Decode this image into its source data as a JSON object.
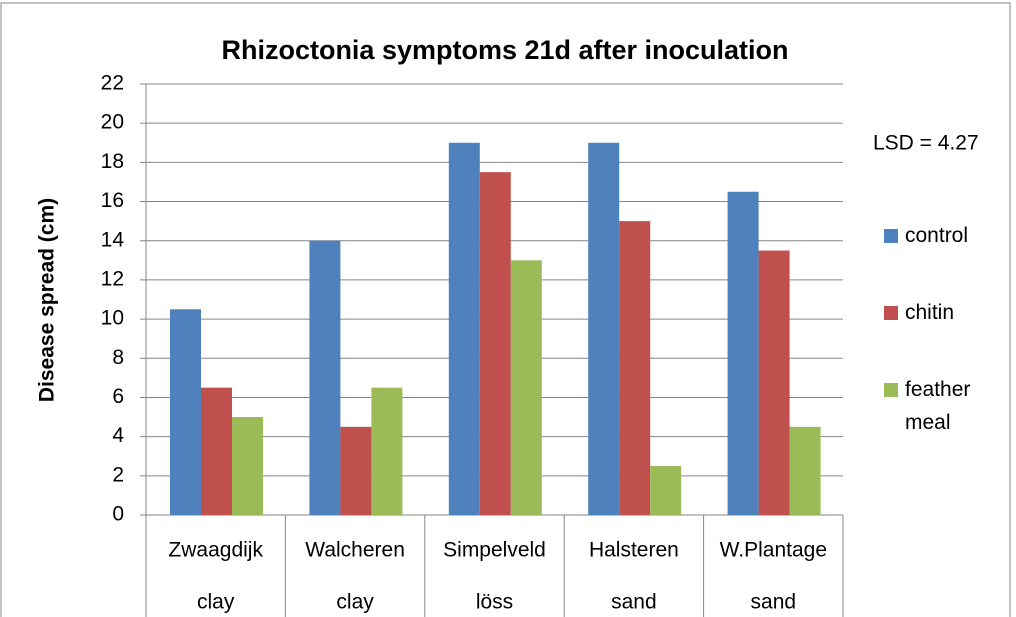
{
  "chart_data": {
    "type": "bar",
    "title": "Rhizoctonia symptoms 21d after inoculation",
    "y_label": "Disease spread (cm)",
    "annotation": "LSD = 4.27",
    "categories": [
      [
        "Zwaagdijk",
        "clay"
      ],
      [
        "Walcheren",
        "clay"
      ],
      [
        "Simpelveld",
        "löss"
      ],
      [
        "Halsteren",
        "sand"
      ],
      [
        "W.Plantage",
        "sand"
      ]
    ],
    "series": [
      {
        "name": "control",
        "color": "#4f81bd",
        "values": [
          10.5,
          14,
          19,
          19,
          16.5
        ]
      },
      {
        "name": "chitin",
        "color": "#c0504d",
        "values": [
          6.5,
          4.5,
          17.5,
          15,
          13.5
        ]
      },
      {
        "name": "feather meal",
        "color": "#9bbb59",
        "values": [
          5,
          6.5,
          13,
          2.5,
          4.5
        ]
      }
    ],
    "ylim": [
      0,
      22
    ],
    "yticks": [
      0,
      2,
      4,
      6,
      8,
      10,
      12,
      14,
      16,
      18,
      20,
      22
    ],
    "grid": true,
    "legend": "right"
  }
}
